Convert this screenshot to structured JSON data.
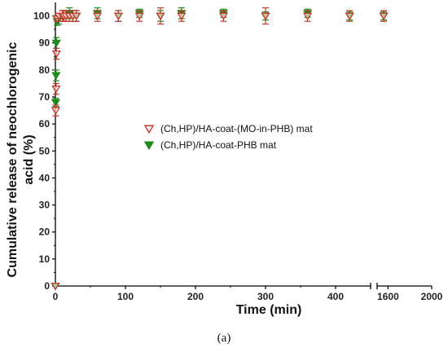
{
  "figure_caption": "(a)",
  "chart_data": {
    "type": "scatter",
    "xlabel": "Time (min)",
    "ylabel_line1": "Cumulative release of neochlorogenic",
    "ylabel_line2": "acid (%)",
    "xlim": [
      0,
      2000
    ],
    "x_axis_break": [
      450,
      1500
    ],
    "ylim": [
      0,
      105
    ],
    "x_ticks": [
      0,
      100,
      200,
      300,
      400,
      1600,
      2000
    ],
    "x_tick_labels": [
      "0",
      "100",
      "200",
      "300",
      "400",
      "1600",
      "2000"
    ],
    "y_ticks": [
      0,
      10,
      20,
      30,
      40,
      50,
      60,
      70,
      80,
      90,
      100
    ],
    "y_tick_labels": [
      "0",
      "10",
      "20",
      "30",
      "40",
      "50",
      "60",
      "70",
      "80",
      "90",
      "100"
    ],
    "grid": false,
    "legend_position": "center",
    "series": [
      {
        "name": "(Ch,HP)/HA-coat-(MO-in-PHB) mat",
        "marker": "open-down-triangle",
        "color": "#c0392b",
        "x": [
          0,
          0.5,
          1,
          1.5,
          2.5,
          5,
          10,
          12,
          15,
          20,
          25,
          30,
          60,
          90,
          120,
          150,
          180,
          240,
          300,
          360,
          420,
          1560
        ],
        "y": [
          0,
          65,
          73,
          86,
          99,
          100,
          100,
          100,
          100,
          100,
          100,
          100,
          100,
          100,
          100,
          100,
          100,
          100,
          100,
          100,
          100,
          100
        ],
        "error": [
          0,
          2,
          2,
          2,
          1,
          1,
          2,
          2,
          2,
          2,
          2,
          2,
          2,
          2,
          2,
          3,
          2,
          2,
          3,
          2,
          2,
          2
        ]
      },
      {
        "name": "(Ch,HP)/HA-coat-PHB mat",
        "marker": "filled-down-triangle",
        "color": "#1e8a1e",
        "x": [
          0,
          0.5,
          1,
          1.5,
          2.5,
          5,
          10,
          12,
          15,
          20,
          25,
          30,
          60,
          90,
          120,
          150,
          180,
          240,
          300,
          360,
          420,
          1560
        ],
        "y": [
          0,
          68,
          78,
          90,
          98,
          99,
          100,
          100,
          100,
          101,
          100,
          100,
          101,
          100,
          101,
          100,
          101,
          101,
          100,
          101,
          100,
          100
        ],
        "error": [
          0,
          1.5,
          2,
          2,
          1.5,
          2,
          2,
          2,
          2,
          2,
          2,
          2,
          2,
          2,
          1.5,
          2,
          2,
          1.5,
          1.5,
          1.5,
          1.5,
          1.5
        ]
      }
    ]
  }
}
